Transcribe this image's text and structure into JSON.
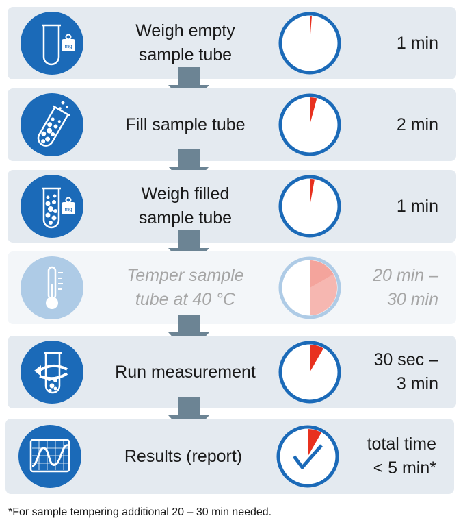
{
  "steps": [
    {
      "label": "Weigh empty\nsample tube",
      "time": "1 min",
      "icon": "empty-tube-with-weight-icon",
      "badge": "mg"
    },
    {
      "label": "Fill sample tube",
      "time": "2 min",
      "icon": "filling-tube-icon"
    },
    {
      "label": "Weigh filled\nsample tube",
      "time": "1 min",
      "icon": "filled-tube-with-weight-icon",
      "badge": "mg"
    },
    {
      "label": "Temper sample\ntube at 40 °C",
      "time": "20 min –\n30 min",
      "icon": "thermometer-icon",
      "optional": true
    },
    {
      "label": "Run measurement",
      "time": "30 sec –\n3 min",
      "icon": "rotating-tube-icon"
    },
    {
      "label": "Results (report)",
      "time": "total time\n< 5 min*",
      "icon": "chart-screen-icon"
    }
  ],
  "footnote": "*For sample tempering additional 20 – 30 min needed.",
  "colors": {
    "primary_blue": "#1b6ab8",
    "accent_red": "#e8311f",
    "arrow_gray": "#6c8494",
    "panel": "#e4eaf0"
  }
}
